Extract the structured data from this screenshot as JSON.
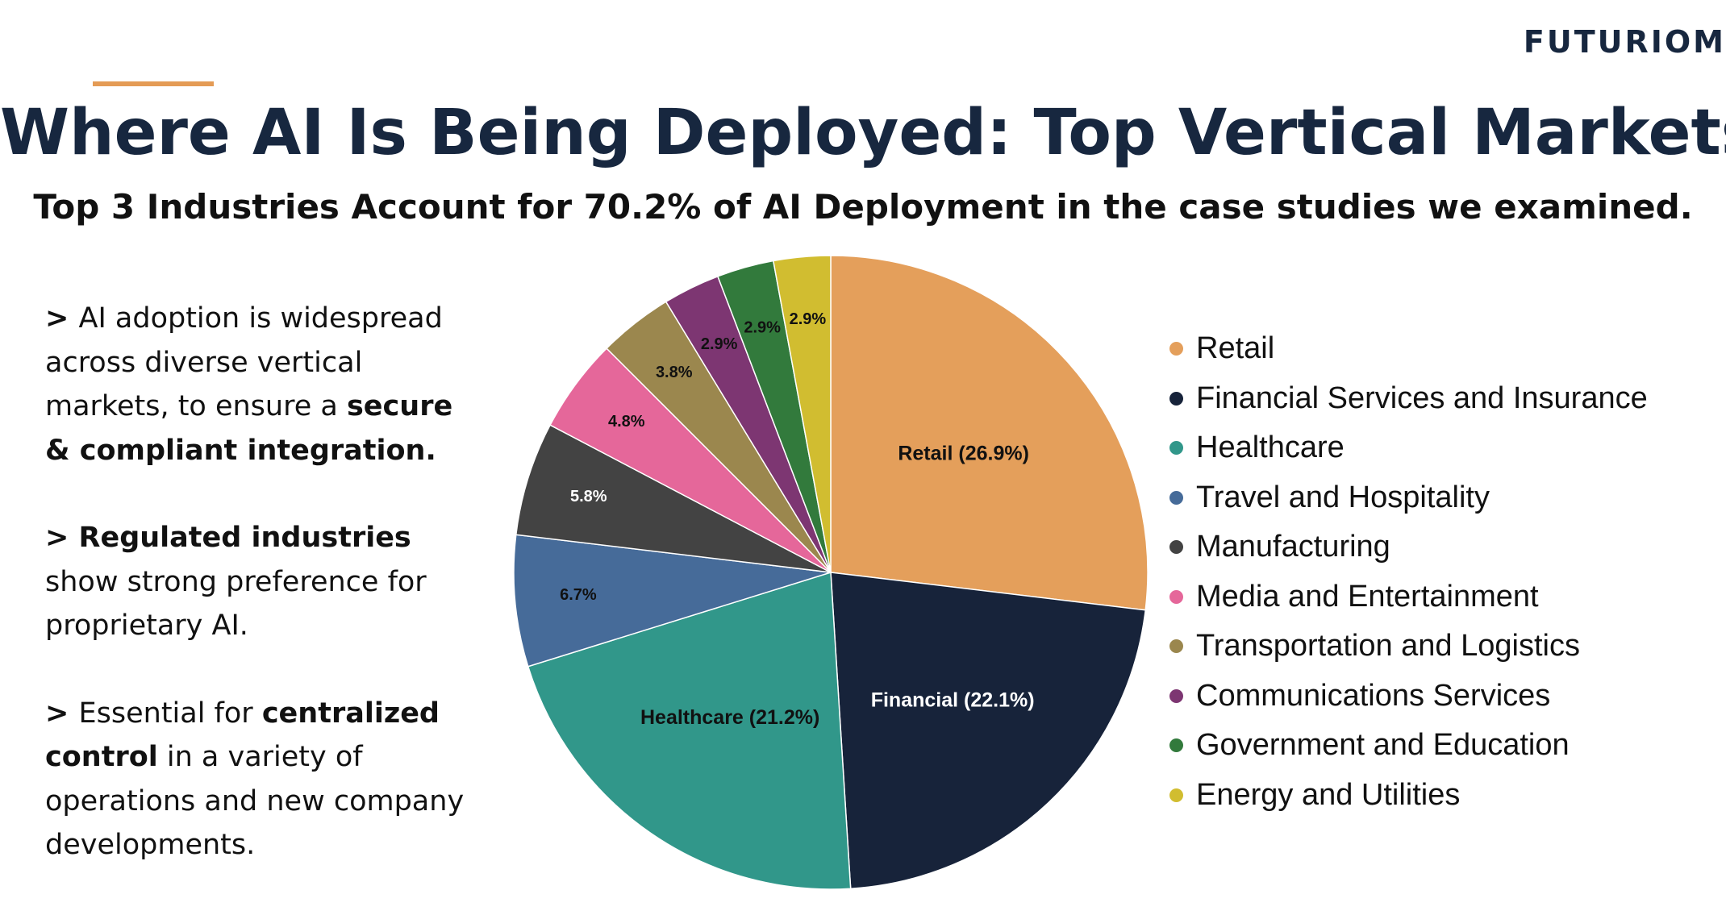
{
  "header": {
    "logo": "FUTURIOM",
    "title": "Where AI Is Being Deployed: Top Vertical Markets",
    "subtitle": "Top 3 Industries Account for 70.2% of AI Deployment in the case studies we examined."
  },
  "bullets": [
    {
      "parts": [
        {
          "text": "> ",
          "bold": true
        },
        {
          "text": "AI adoption is widespread across diverse vertical markets, to ensure a ",
          "bold": false
        },
        {
          "text": "secure & compliant integration.",
          "bold": true
        }
      ]
    },
    {
      "parts": [
        {
          "text": "> Regulated industries",
          "bold": true
        },
        {
          "text": " show strong preference for proprietary AI.",
          "bold": false
        }
      ]
    },
    {
      "parts": [
        {
          "text": "> ",
          "bold": true
        },
        {
          "text": "Essential for ",
          "bold": false
        },
        {
          "text": "centralized control",
          "bold": true
        },
        {
          "text": " in a variety of operations and new company developments.",
          "bold": false
        }
      ]
    }
  ],
  "chart_data": {
    "type": "pie",
    "start": "12 o'clock, clockwise",
    "slices": [
      {
        "name": "Retail",
        "value": 26.9,
        "label": "Retail (26.9%)",
        "color": "#E49F5B",
        "label_color": "#111111"
      },
      {
        "name": "Financial Services and Insurance",
        "value": 22.1,
        "label": "Financial (22.1%)",
        "color": "#17233A",
        "label_color": "#FFFFFF"
      },
      {
        "name": "Healthcare",
        "value": 21.2,
        "label": "Healthcare (21.2%)",
        "color": "#31978A",
        "label_color": "#111111"
      },
      {
        "name": "Travel and Hospitality",
        "value": 6.7,
        "label": "6.7%",
        "color": "#466B99",
        "label_color": "#111111"
      },
      {
        "name": "Manufacturing",
        "value": 5.8,
        "label": "5.8%",
        "color": "#434343",
        "label_color": "#FFFFFF"
      },
      {
        "name": "Media and Entertainment",
        "value": 4.8,
        "label": "4.8%",
        "color": "#E5679A",
        "label_color": "#111111"
      },
      {
        "name": "Transportation and Logistics",
        "value": 3.8,
        "label": "3.8%",
        "color": "#9B874E",
        "label_color": "#111111"
      },
      {
        "name": "Communications Services",
        "value": 2.9,
        "label": "2.9%",
        "color": "#7D3672",
        "label_color": "#111111"
      },
      {
        "name": "Government and Education",
        "value": 2.9,
        "label": "2.9%",
        "color": "#327A3C",
        "label_color": "#111111"
      },
      {
        "name": "Energy and Utilities",
        "value": 2.9,
        "label": "2.9%",
        "color": "#D1BD30",
        "label_color": "#111111"
      }
    ],
    "legend_position": "right"
  }
}
